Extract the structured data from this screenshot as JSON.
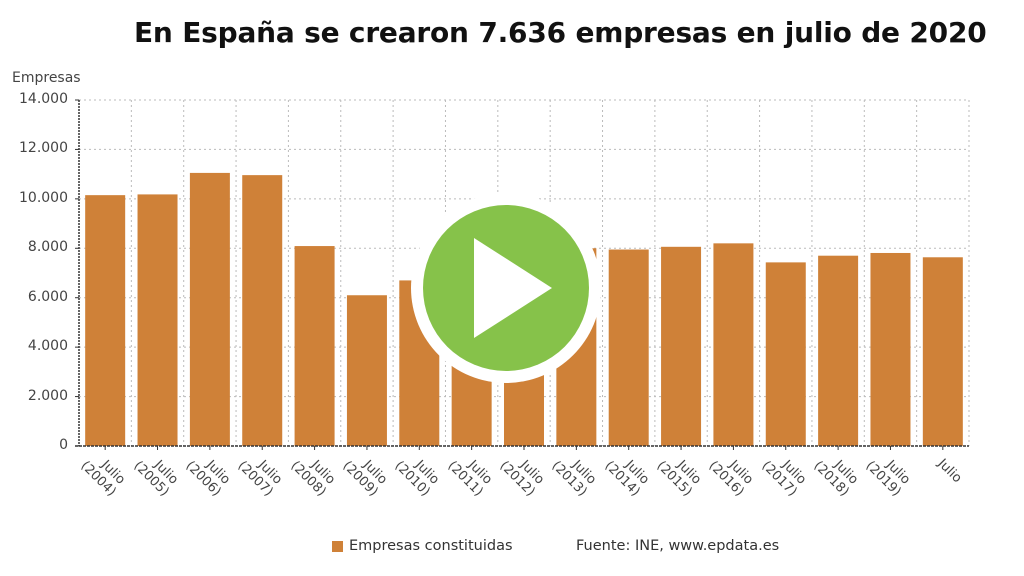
{
  "header": {
    "title": "En España se crearon 7.636 empresas en julio de 2020"
  },
  "legend": {
    "series_label": "Empresas constituidas",
    "source": "Fuente: INE, www.epdata.es"
  },
  "colors": {
    "bar": "#CF8138",
    "play_button": "#86C24A",
    "grid": "#BBBBBB",
    "axis": "#333333"
  },
  "play_button": {
    "icon": "play-icon"
  },
  "chart_data": {
    "type": "bar",
    "title": "En España se crearon 7.636 empresas en julio de 2020",
    "xlabel": "",
    "ylabel": "Empresas",
    "ylim": [
      0,
      14000
    ],
    "yticks": [
      0,
      2000,
      4000,
      6000,
      8000,
      10000,
      12000,
      14000
    ],
    "ytick_labels": [
      "0",
      "2.000",
      "4.000",
      "6.000",
      "8.000",
      "10.000",
      "12.000",
      "14.000"
    ],
    "grid": true,
    "legend_position": "bottom",
    "categories": [
      "Julio (2004)",
      "Julio (2005)",
      "Julio (2006)",
      "Julio (2007)",
      "Julio (2008)",
      "Julio (2009)",
      "Julio (2010)",
      "Julio (2011)",
      "Julio (2012)",
      "Julio (2013)",
      "Julio (2014)",
      "Julio (2015)",
      "Julio (2016)",
      "Julio (2017)",
      "Julio (2018)",
      "Julio (2019)",
      "Julio"
    ],
    "category_lines": [
      [
        "Julio",
        "(2004)"
      ],
      [
        "Julio",
        "(2005)"
      ],
      [
        "Julio",
        "(2006)"
      ],
      [
        "Julio",
        "(2007)"
      ],
      [
        "Julio",
        "(2008)"
      ],
      [
        "Julio",
        "(2009)"
      ],
      [
        "Julio",
        "(2010)"
      ],
      [
        "Julio",
        "(2011)"
      ],
      [
        "Julio",
        "(2012)"
      ],
      [
        "Julio",
        "(2013)"
      ],
      [
        "Julio",
        "(2014)"
      ],
      [
        "Julio",
        "(2015)"
      ],
      [
        "Julio",
        "(2016)"
      ],
      [
        "Julio",
        "(2017)"
      ],
      [
        "Julio",
        "(2018)"
      ],
      [
        "Julio",
        "(2019)"
      ],
      [
        "Julio",
        ""
      ]
    ],
    "series": [
      {
        "name": "Empresas constituidas",
        "values": [
          10150,
          10180,
          11050,
          10960,
          8090,
          6100,
          6700,
          7500,
          7300,
          8000,
          7950,
          8060,
          8200,
          7430,
          7700,
          7810,
          7636
        ]
      }
    ]
  }
}
